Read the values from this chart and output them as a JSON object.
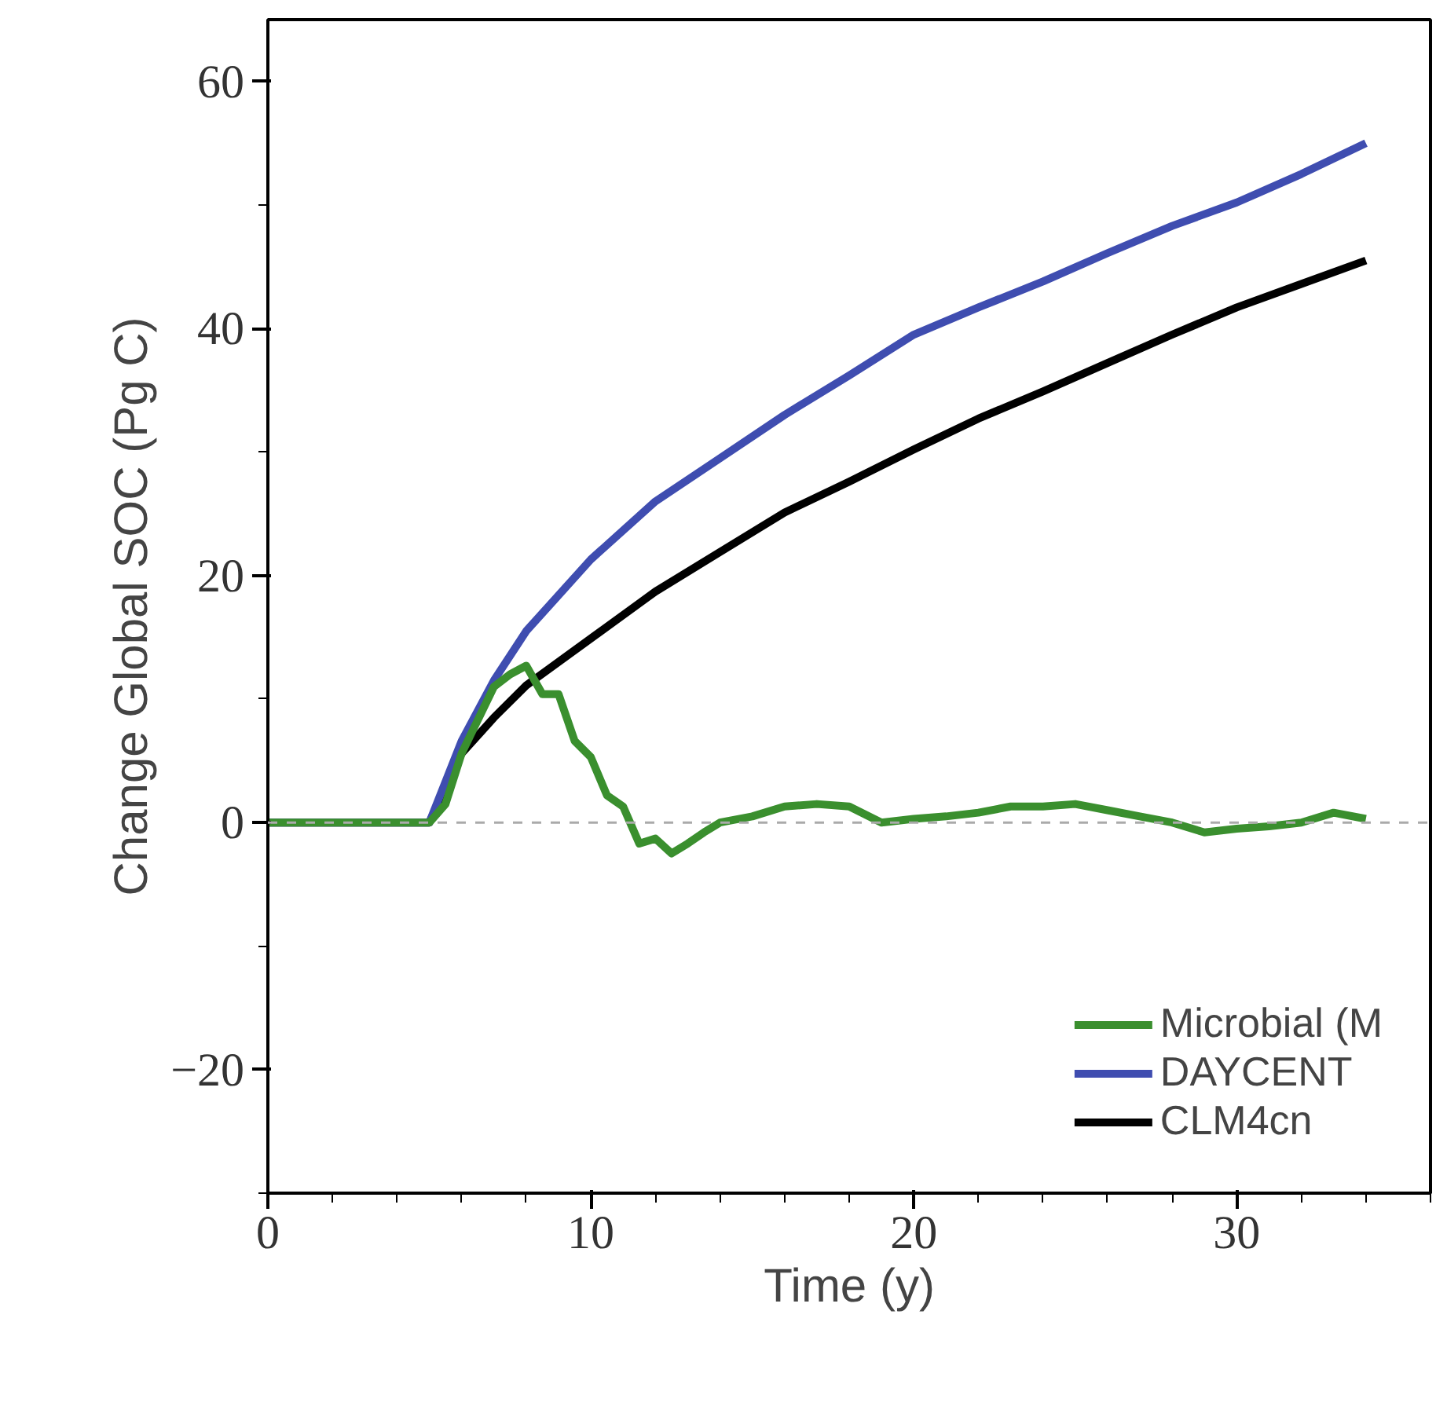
{
  "chart_data": {
    "type": "line",
    "xlabel": "Time (y)",
    "ylabel": "Change Global SOC (Pg C)",
    "x": [
      0,
      5,
      6,
      7,
      8,
      10,
      12,
      14,
      16,
      18,
      20,
      22,
      24,
      26,
      28,
      30,
      32,
      34
    ],
    "xlim": [
      0,
      36
    ],
    "ylim": [
      -30,
      65
    ],
    "xticks": [
      0,
      10,
      20,
      30
    ],
    "yticks": [
      -20,
      0,
      20,
      40,
      60
    ],
    "grid": false,
    "legend": "bottom right",
    "ref_lines": [
      {
        "axis": "y",
        "value": 0,
        "color": "#aaaaaa",
        "line_style": "dashed"
      }
    ],
    "series": [
      {
        "name": "Microbial (M",
        "color": "#3a8f2e",
        "x": [
          0,
          5,
          5.5,
          6,
          7,
          7.5,
          8,
          8.5,
          9,
          9.5,
          10,
          10.5,
          11,
          11.5,
          12,
          12.5,
          13,
          13.5,
          14,
          15,
          16,
          17,
          18,
          19,
          20,
          21,
          22,
          23,
          24,
          25,
          26,
          27,
          28,
          29,
          30,
          31,
          32,
          33,
          34
        ],
        "values": [
          0,
          0,
          1.5,
          5.6,
          11,
          12,
          12.7,
          10.4,
          10.4,
          6.6,
          5.3,
          2.2,
          1.3,
          -1.7,
          -1.3,
          -2.5,
          -1.7,
          -0.8,
          0,
          0.5,
          1.3,
          1.5,
          1.3,
          0,
          0.3,
          0.5,
          0.8,
          1.3,
          1.3,
          1.5,
          1,
          0.5,
          0,
          -0.8,
          -0.5,
          -0.3,
          0,
          0.8,
          0.3
        ]
      },
      {
        "name": "DAYCENT",
        "color": "#3f4db0",
        "values": [
          0,
          0,
          6.6,
          11.5,
          15.5,
          21.3,
          26,
          29.5,
          33,
          36.2,
          39.5,
          41.7,
          43.8,
          46.1,
          48.3,
          50.2,
          52.5,
          55
        ]
      },
      {
        "name": "CLM4cn",
        "color": "#000000",
        "values": [
          0,
          0,
          5.6,
          8.5,
          11.1,
          14.9,
          18.7,
          21.9,
          25.1,
          27.6,
          30.2,
          32.7,
          34.9,
          37.2,
          39.5,
          41.7,
          43.6,
          45.5
        ]
      }
    ]
  }
}
